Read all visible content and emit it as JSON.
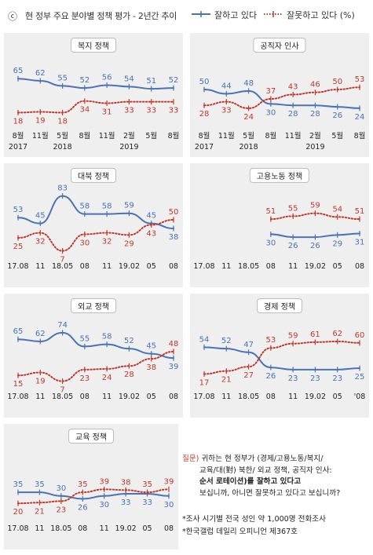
{
  "header": {
    "mark": "ⓒ",
    "title": "현 정부 주요 분야별 정책 평가 - 2년간 추이",
    "legend_good": "잘하고 있다",
    "legend_bad": "잘못하고 있다 (%)"
  },
  "colors": {
    "good": "#4a72b5",
    "bad": "#c0392b",
    "panel_bg": "#efefef"
  },
  "chart_data": [
    {
      "type": "line",
      "title": "복지 정책",
      "categories": [
        "8월\n2017",
        "11월",
        "5월\n2018",
        "8월",
        "11월",
        "2월\n2019",
        "5월",
        "8월"
      ],
      "series": [
        {
          "name": "잘하고 있다",
          "values": [
            65,
            62,
            55,
            52,
            56,
            54,
            51,
            52
          ]
        },
        {
          "name": "잘못하고 있다",
          "values": [
            18,
            19,
            18,
            34,
            31,
            33,
            33,
            33
          ]
        }
      ],
      "ylim": [
        0,
        100
      ]
    },
    {
      "type": "line",
      "title": "공직자 인사",
      "categories": [
        "8월\n2017",
        "11월",
        "5월\n2018",
        "8월",
        "11월",
        "2월\n2019",
        "5월",
        "8월"
      ],
      "series": [
        {
          "name": "잘하고 있다",
          "values": [
            50,
            44,
            48,
            30,
            28,
            28,
            26,
            24
          ]
        },
        {
          "name": "잘못하고 있다",
          "values": [
            28,
            33,
            24,
            37,
            43,
            46,
            50,
            53
          ]
        }
      ],
      "ylim": [
        0,
        100
      ]
    },
    {
      "type": "line",
      "title": "대북 정책",
      "categories": [
        "17.08",
        "11",
        "18.05",
        "08",
        "11",
        "19.02",
        "05",
        "08"
      ],
      "series": [
        {
          "name": "잘하고 있다",
          "values": [
            53,
            45,
            83,
            58,
            58,
            59,
            45,
            38
          ]
        },
        {
          "name": "잘못하고 있다",
          "values": [
            25,
            32,
            7,
            30,
            32,
            29,
            43,
            50
          ]
        }
      ],
      "ylim": [
        0,
        100
      ]
    },
    {
      "type": "line",
      "title": "고용노동 정책",
      "categories": [
        "17.08",
        "11",
        "18.05",
        "08",
        "11",
        "19.02",
        "05",
        "08"
      ],
      "series": [
        {
          "name": "잘하고 있다",
          "values": [
            null,
            null,
            null,
            30,
            26,
            26,
            29,
            31
          ]
        },
        {
          "name": "잘못하고 있다",
          "values": [
            null,
            null,
            null,
            51,
            55,
            59,
            54,
            51
          ]
        }
      ],
      "ylim": [
        0,
        100
      ]
    },
    {
      "type": "line",
      "title": "외교 정책",
      "categories": [
        "17.08",
        "11",
        "18.05",
        "08",
        "11",
        "19.02",
        "05",
        "08"
      ],
      "series": [
        {
          "name": "잘하고 있다",
          "values": [
            65,
            62,
            74,
            55,
            58,
            52,
            45,
            39
          ]
        },
        {
          "name": "잘못하고 있다",
          "values": [
            15,
            19,
            7,
            23,
            24,
            28,
            38,
            48
          ]
        }
      ],
      "ylim": [
        0,
        100
      ]
    },
    {
      "type": "line",
      "title": "경제 정책",
      "categories": [
        "17.08",
        "11",
        "18.05",
        "08",
        "11",
        "19.02",
        "05",
        "'08"
      ],
      "series": [
        {
          "name": "잘하고 있다",
          "values": [
            54,
            52,
            47,
            26,
            23,
            23,
            23,
            25
          ]
        },
        {
          "name": "잘못하고 있다",
          "values": [
            17,
            21,
            27,
            53,
            59,
            61,
            62,
            60
          ]
        }
      ],
      "ylim": [
        0,
        100
      ]
    },
    {
      "type": "line",
      "title": "교육 정책",
      "categories": [
        "17.08",
        "11",
        "18.05",
        "08",
        "11",
        "19.02",
        "05",
        "08"
      ],
      "series": [
        {
          "name": "잘하고 있다",
          "values": [
            35,
            35,
            30,
            26,
            30,
            33,
            33,
            30
          ]
        },
        {
          "name": "잘못하고 있다",
          "values": [
            20,
            21,
            23,
            35,
            39,
            38,
            35,
            39
          ]
        }
      ],
      "ylim": [
        0,
        100
      ]
    }
  ],
  "note": {
    "question_label": "질문)",
    "question_text": "귀하는 현 정부가 (경제/고용노동/복지/",
    "line2": "교육/대(對) 북한/ 외교 정책, 공직자 인사:",
    "line3": "순서 로테이션)를 잘하고 있다고",
    "line4": "보십니까, 아니면 잘못하고 있다고 보십니까?",
    "foot1": "*조사 시기별 전국 성인 약 1,000명 전화조사",
    "foot2": "*한국갤럽 데일리 오피니언 제367호"
  }
}
